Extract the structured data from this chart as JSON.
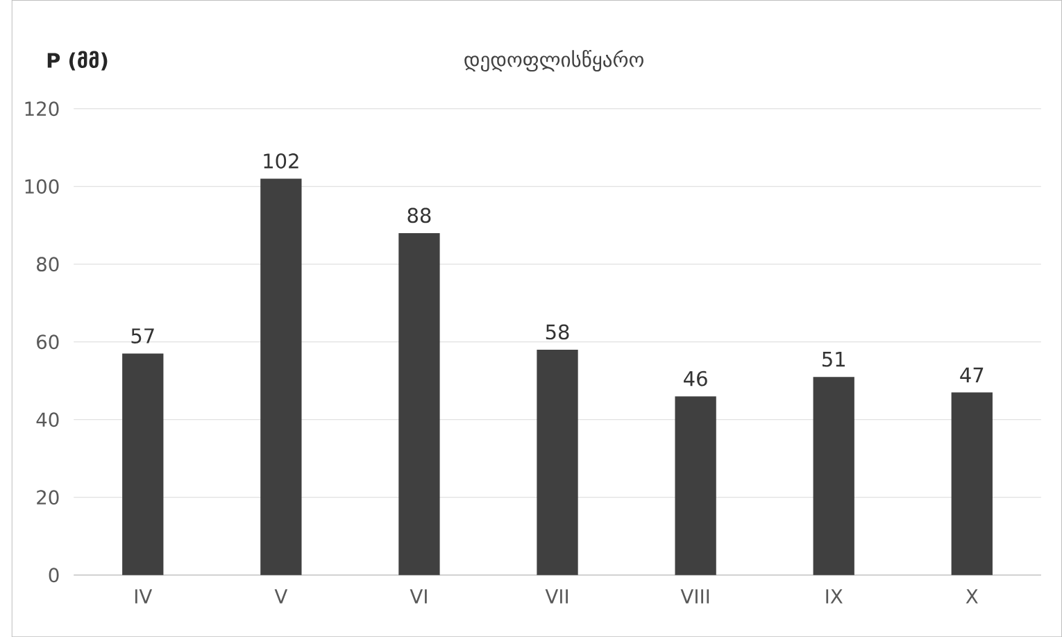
{
  "chart_data": {
    "type": "bar",
    "title": "დედოფლისწყარო",
    "ylabel": "P (მმ)",
    "categories": [
      "IV",
      "V",
      "VI",
      "VII",
      "VIII",
      "IX",
      "X"
    ],
    "values": [
      57,
      102,
      88,
      58,
      46,
      51,
      47
    ],
    "color": "#404040",
    "ylim": [
      0,
      120
    ],
    "yticks": [
      0,
      20,
      40,
      60,
      80,
      100,
      120
    ],
    "grid": "y",
    "data_labels": true
  }
}
